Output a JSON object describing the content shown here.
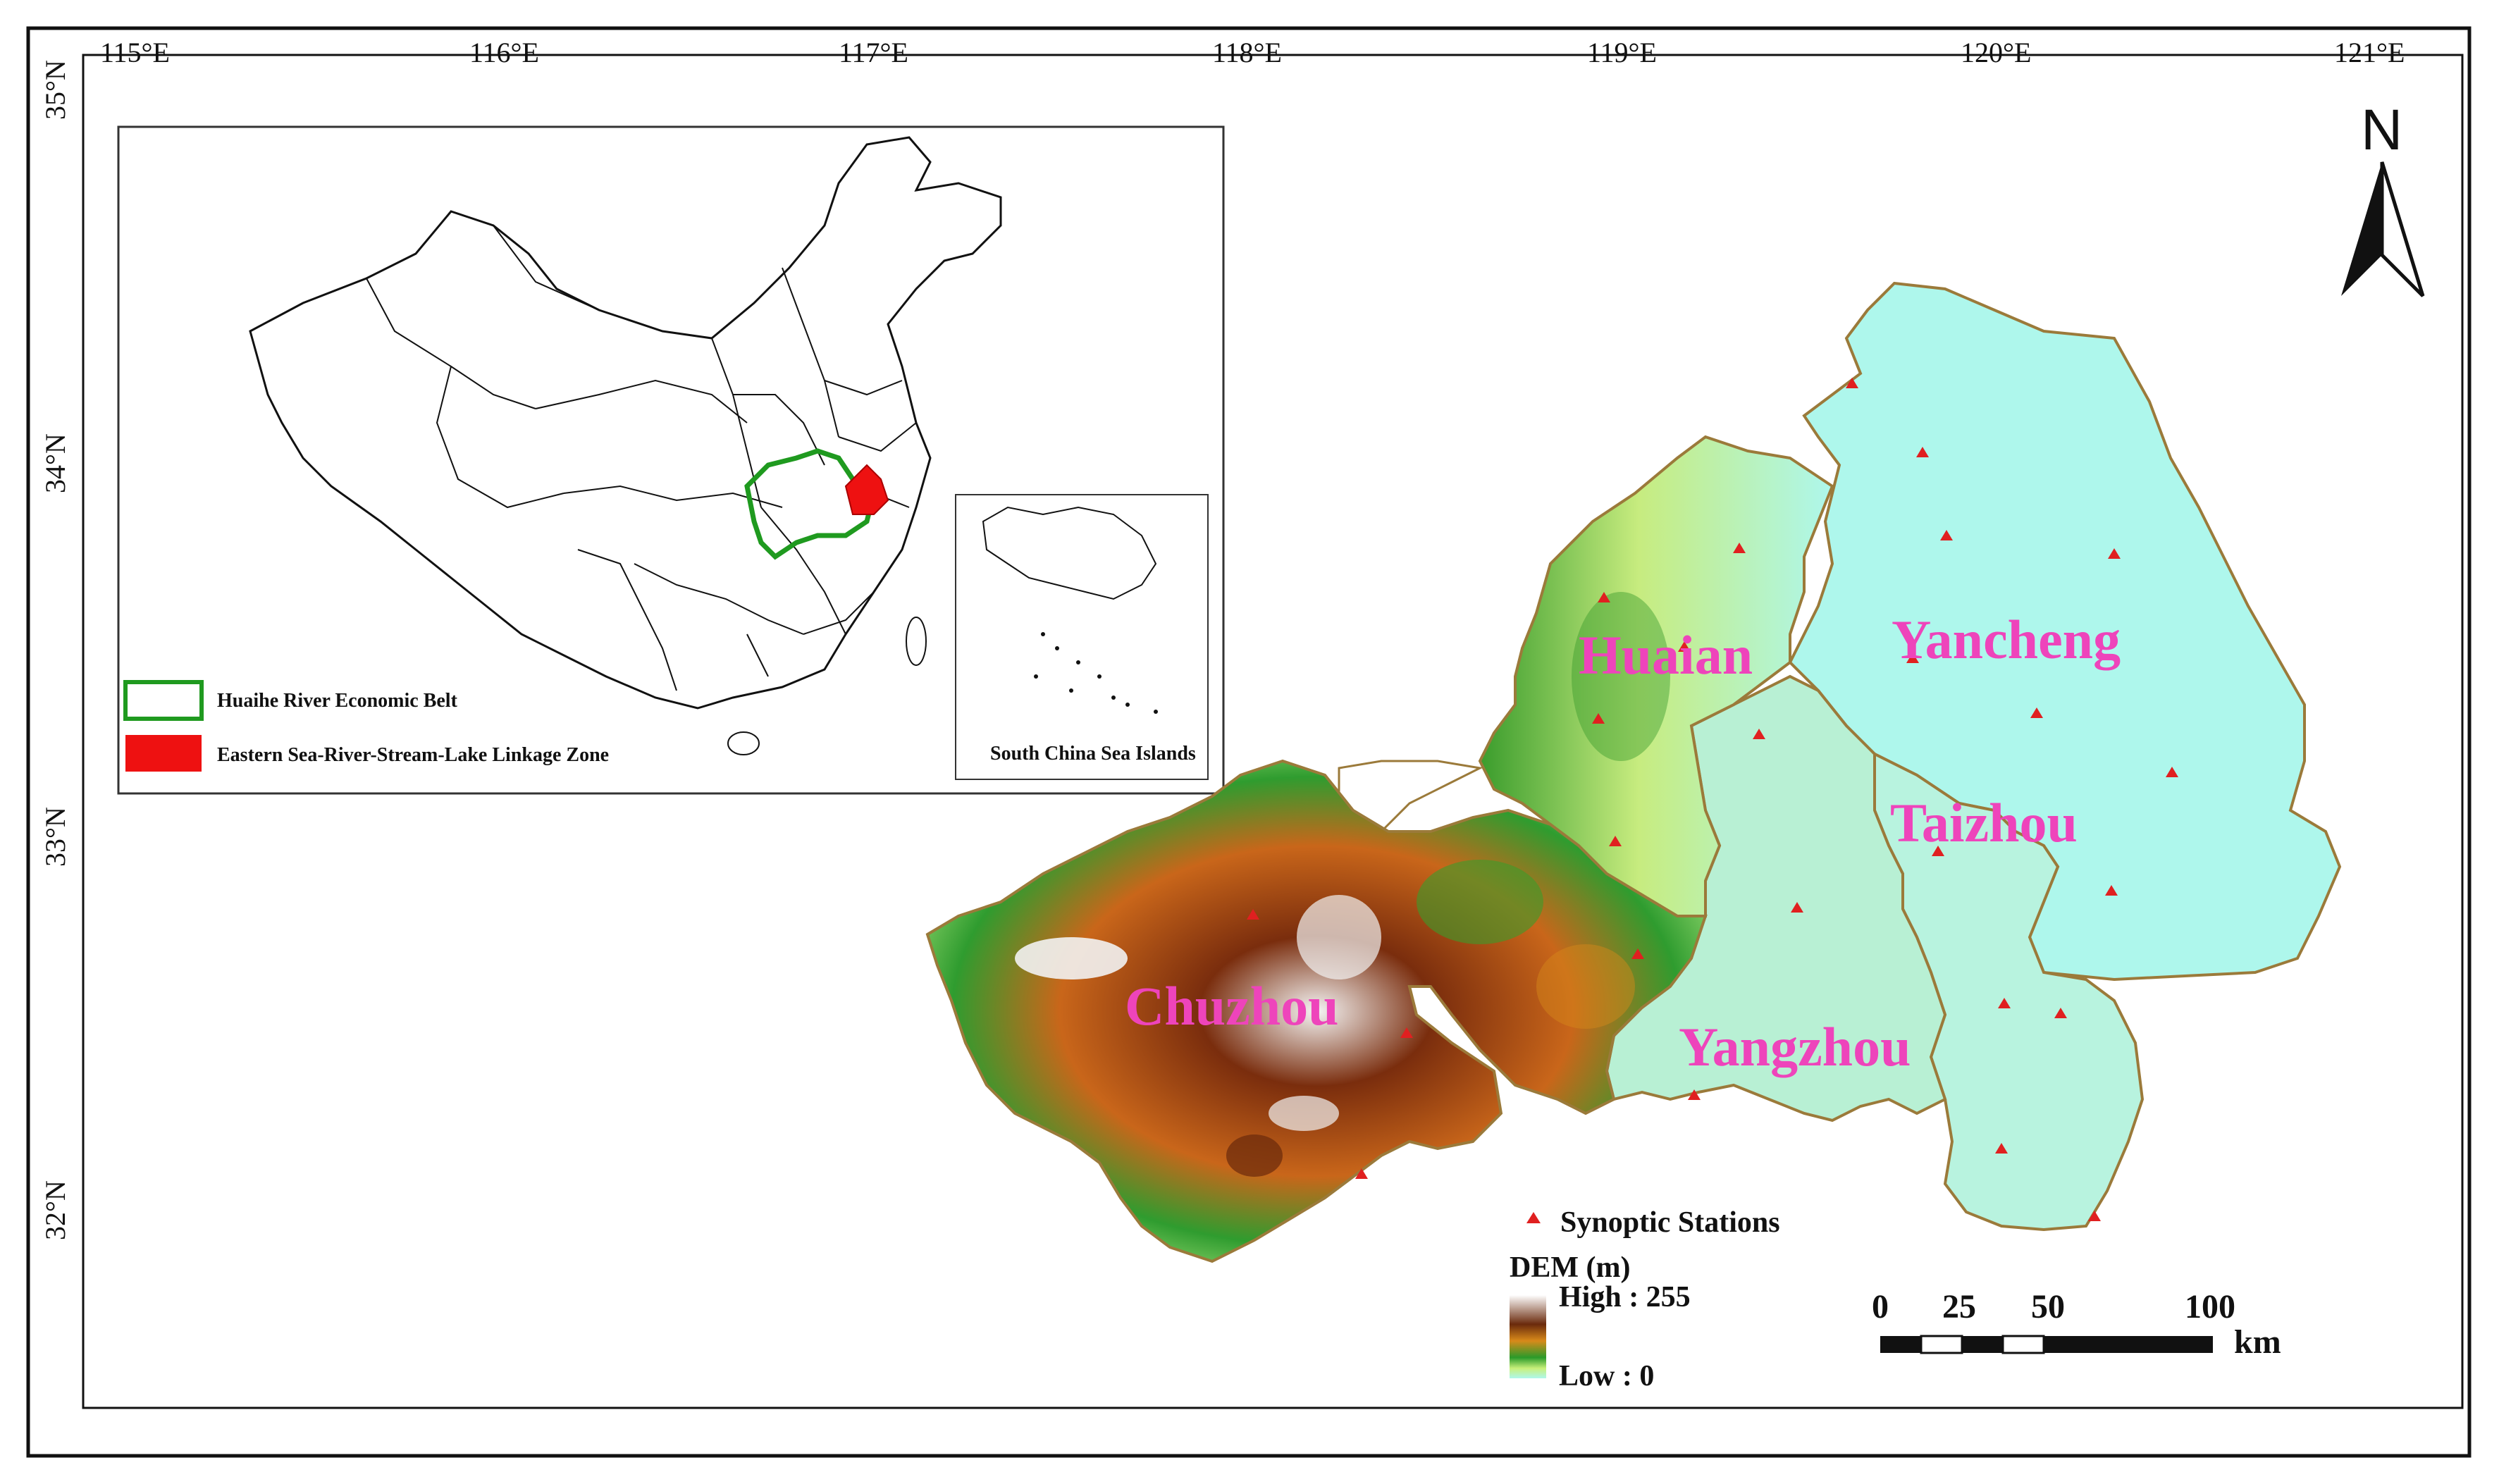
{
  "axes": {
    "top_lon_labels": [
      "115°E",
      "116°E",
      "117°E",
      "118°E",
      "119°E",
      "120°E",
      "121°E"
    ],
    "left_lat_labels": [
      "35°N",
      "34°N",
      "33°N",
      "32°N"
    ]
  },
  "inset": {
    "legend": [
      {
        "label": "Huaihe River Economic Belt",
        "swatch": "outline-green"
      },
      {
        "label": "Eastern Sea-River-Stream-Lake Linkage Zone",
        "swatch": "fill-red"
      }
    ],
    "south_china_sea_label": "South China Sea Islands"
  },
  "north_arrow": {
    "label": "N"
  },
  "cities": [
    {
      "name": "Huaian"
    },
    {
      "name": "Yancheng"
    },
    {
      "name": "Taizhou"
    },
    {
      "name": "Yangzhou"
    },
    {
      "name": "Chuzhou"
    }
  ],
  "legend": {
    "stations_label": "Synoptic Stations",
    "dem_title": "DEM (m)",
    "dem_high": "High : 255",
    "dem_low": "Low : 0"
  },
  "scale_bar": {
    "ticks": [
      "0",
      "25",
      "50",
      "100"
    ],
    "unit": "km"
  },
  "colors": {
    "frame": "#111111",
    "city_label": "#ee44bb",
    "station": "#e02020",
    "lowland": "#aef7ec",
    "huaihe_outline": "#1f9a1f",
    "linkage_zone": "#ee1111",
    "dem_ramp": [
      "#ffffff",
      "#6a2a0c",
      "#d88a1a",
      "#2a9a2a",
      "#c9f07a",
      "#aef7ec"
    ]
  }
}
